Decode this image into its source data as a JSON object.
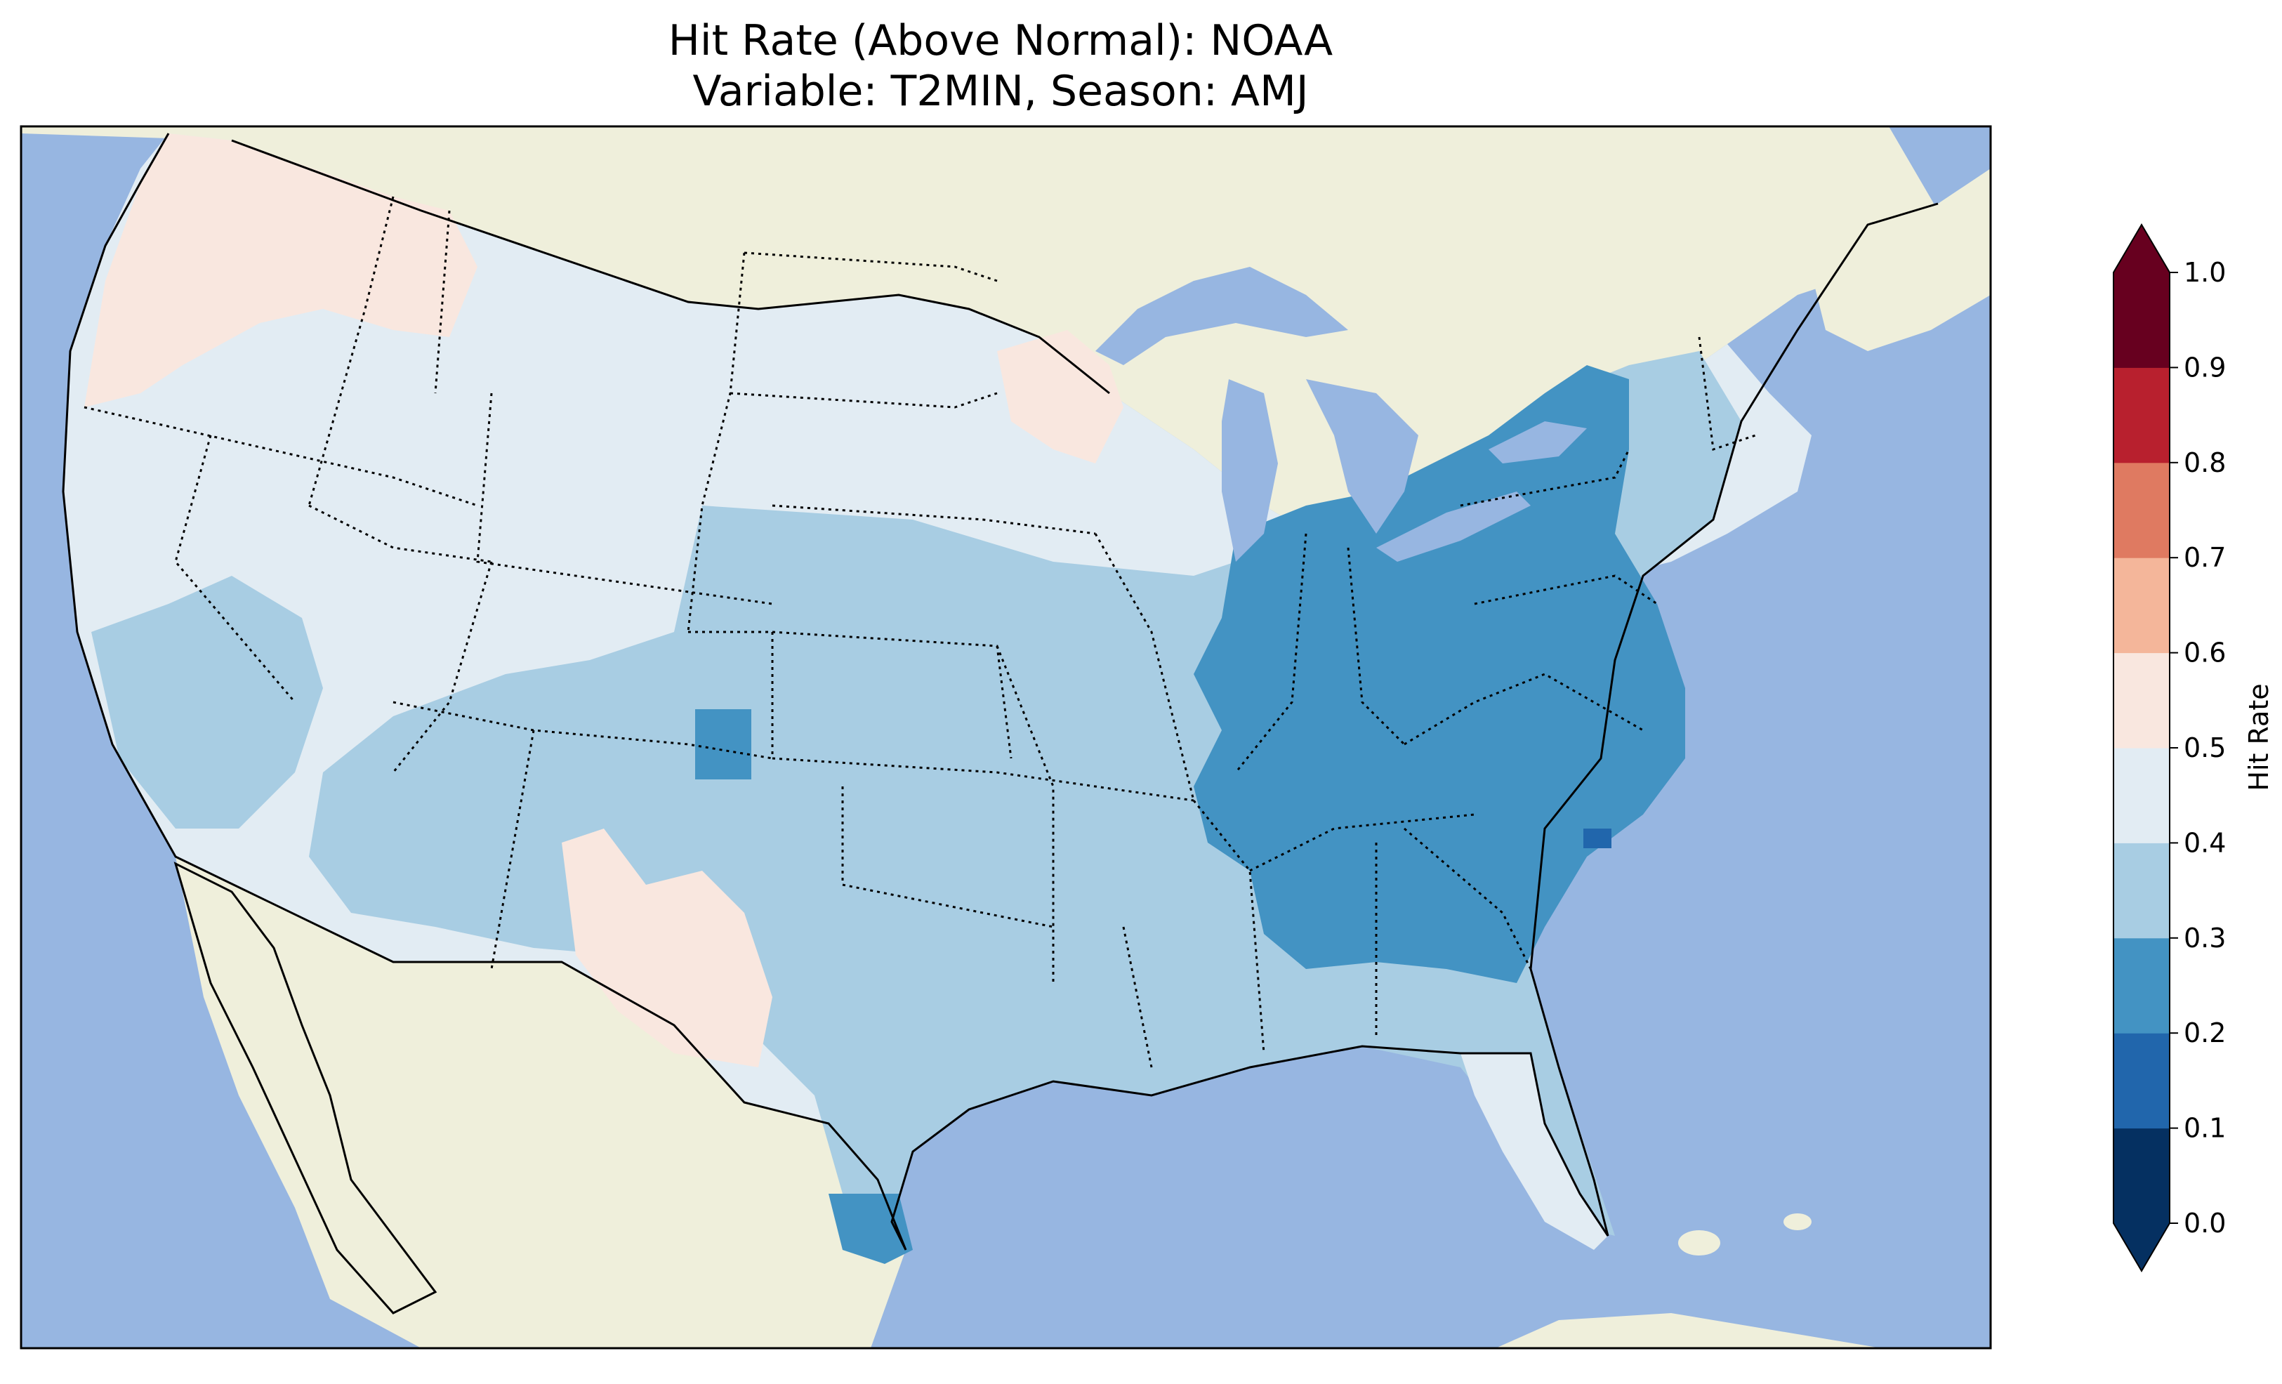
{
  "title": {
    "line1": "Hit Rate (Above Normal): NOAA",
    "line2": "Variable: T2MIN, Season: AMJ"
  },
  "colors": {
    "ocean": "#97b6e1",
    "land": "#efefdb",
    "coast": "#000000"
  },
  "colorbar": {
    "label": "Hit Rate",
    "ticks": [
      "0.0",
      "0.1",
      "0.2",
      "0.3",
      "0.4",
      "0.5",
      "0.6",
      "0.7",
      "0.8",
      "0.9",
      "1.0"
    ],
    "bins": [
      {
        "range": [
          0.0,
          0.1
        ],
        "color": "#053061"
      },
      {
        "range": [
          0.1,
          0.2
        ],
        "color": "#2166ac"
      },
      {
        "range": [
          0.2,
          0.3
        ],
        "color": "#4393c3"
      },
      {
        "range": [
          0.3,
          0.4
        ],
        "color": "#a8cde3"
      },
      {
        "range": [
          0.4,
          0.5
        ],
        "color": "#e2ecf3"
      },
      {
        "range": [
          0.5,
          0.6
        ],
        "color": "#f9e7df"
      },
      {
        "range": [
          0.6,
          0.7
        ],
        "color": "#f4b69a"
      },
      {
        "range": [
          0.7,
          0.8
        ],
        "color": "#df7a61"
      },
      {
        "range": [
          0.8,
          0.9
        ],
        "color": "#b8202e"
      },
      {
        "range": [
          0.9,
          1.0
        ],
        "color": "#67001f"
      }
    ],
    "extend": "both"
  },
  "regions": [
    {
      "name": "eastern-us",
      "hit_rate_bin": [
        0.2,
        0.3
      ]
    },
    {
      "name": "midwest-plains",
      "hit_rate_bin": [
        0.3,
        0.4
      ]
    },
    {
      "name": "west-northern-us",
      "hit_rate_bin": [
        0.4,
        0.5
      ]
    },
    {
      "name": "pacific-northwest",
      "hit_rate_bin": [
        0.5,
        0.6
      ]
    },
    {
      "name": "new-mexico",
      "hit_rate_bin": [
        0.5,
        0.6
      ]
    },
    {
      "name": "north-carolina-coast",
      "hit_rate_bin": [
        0.1,
        0.2
      ]
    }
  ]
}
